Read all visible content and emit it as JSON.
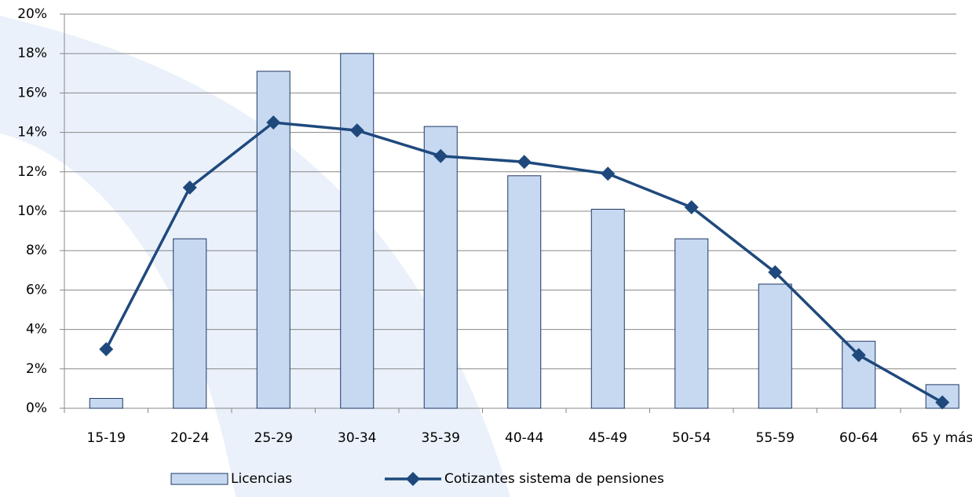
{
  "chart_data": {
    "type": "bar_line",
    "categories": [
      "15-19",
      "20-24",
      "25-29",
      "30-34",
      "35-39",
      "40-44",
      "45-49",
      "50-54",
      "55-59",
      "60-64",
      "65 y más"
    ],
    "series": [
      {
        "name": "Licencias",
        "type": "bar",
        "color": "#c6d9f1",
        "values": [
          0.5,
          8.6,
          17.1,
          18.0,
          14.3,
          11.8,
          10.1,
          8.6,
          6.3,
          3.4,
          1.2
        ]
      },
      {
        "name": "Cotizantes sistema de pensiones",
        "type": "line",
        "color": "#1f497d",
        "values": [
          3.0,
          11.2,
          14.5,
          14.1,
          12.8,
          12.5,
          11.9,
          10.2,
          6.9,
          2.7,
          0.3
        ]
      }
    ],
    "ylim": [
      0,
      20
    ],
    "yticks": [
      {
        "value": 0,
        "label": "0%"
      },
      {
        "value": 2,
        "label": "2%"
      },
      {
        "value": 4,
        "label": "4%"
      },
      {
        "value": 6,
        "label": "6%"
      },
      {
        "value": 8,
        "label": "8%"
      },
      {
        "value": 10,
        "label": "10%"
      },
      {
        "value": 12,
        "label": "12%"
      },
      {
        "value": 14,
        "label": "14%"
      },
      {
        "value": 16,
        "label": "16%"
      },
      {
        "value": 18,
        "label": "18%"
      },
      {
        "value": 20,
        "label": "20%"
      }
    ],
    "grid": true,
    "legend": "bottom"
  }
}
